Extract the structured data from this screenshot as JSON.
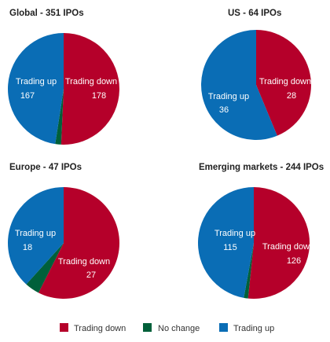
{
  "colors": {
    "trading_down": "#B5002A",
    "no_change": "#00603A",
    "trading_up": "#0A6DB5"
  },
  "legend": [
    {
      "key": "trading_down",
      "label": "Trading down"
    },
    {
      "key": "no_change",
      "label": "No change"
    },
    {
      "key": "trading_up",
      "label": "Trading up"
    }
  ],
  "chart_data": [
    {
      "type": "pie",
      "title": "Global - 351 IPOs",
      "slices": [
        {
          "key": "trading_down",
          "name": "Trading down",
          "value": 178
        },
        {
          "key": "no_change",
          "name": "No change",
          "value": 6
        },
        {
          "key": "trading_up",
          "name": "Trading up",
          "value": 167
        }
      ]
    },
    {
      "type": "pie",
      "title": "US - 64 IPOs",
      "slices": [
        {
          "key": "trading_down",
          "name": "Trading down",
          "value": 28
        },
        {
          "key": "no_change",
          "name": "No change",
          "value": 0
        },
        {
          "key": "trading_up",
          "name": "Trading up",
          "value": 36
        }
      ]
    },
    {
      "type": "pie",
      "title": "Europe - 47 IPOs",
      "slices": [
        {
          "key": "trading_down",
          "name": "Trading down",
          "value": 27
        },
        {
          "key": "no_change",
          "name": "No change",
          "value": 2
        },
        {
          "key": "trading_up",
          "name": "Trading up",
          "value": 18
        }
      ]
    },
    {
      "type": "pie",
      "title": "Emerging markets - 244 IPOs",
      "slices": [
        {
          "key": "trading_down",
          "name": "Trading down",
          "value": 126
        },
        {
          "key": "no_change",
          "name": "No change",
          "value": 3
        },
        {
          "key": "trading_up",
          "name": "Trading up",
          "value": 115
        }
      ]
    }
  ]
}
